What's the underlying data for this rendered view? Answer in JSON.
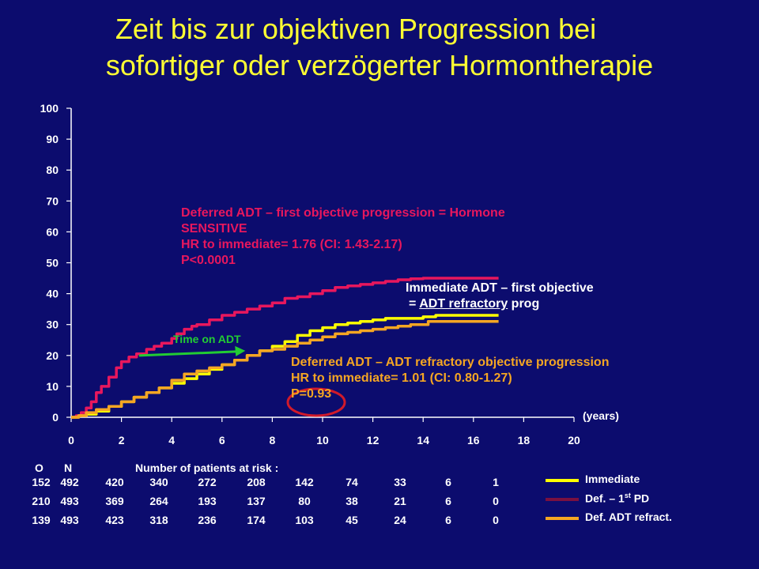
{
  "title": {
    "line1": "Zeit bis zur objektiven Progression bei",
    "line2": "sofortiger oder verzögerter Hormontherapie"
  },
  "chart_data": {
    "type": "line",
    "xlabel": "(years)",
    "ylabel": "",
    "xlim": [
      0,
      20
    ],
    "ylim": [
      0,
      100
    ],
    "x_ticks": [
      0,
      2,
      4,
      6,
      8,
      10,
      12,
      14,
      16,
      18,
      20
    ],
    "y_ticks": [
      0,
      10,
      20,
      30,
      40,
      50,
      60,
      70,
      80,
      90,
      100
    ],
    "grid": false,
    "series": [
      {
        "key": "def-first-pd",
        "color": "#e8175d",
        "x": [
          0,
          0.2,
          0.4,
          0.6,
          0.8,
          1.0,
          1.2,
          1.5,
          1.8,
          2.0,
          2.3,
          2.6,
          3.0,
          3.3,
          3.6,
          4.0,
          4.2,
          4.5,
          4.8,
          5.0,
          5.5,
          6.0,
          6.5,
          7.0,
          7.5,
          8.0,
          8.5,
          9.0,
          9.5,
          10.0,
          10.5,
          11.0,
          11.5,
          12.0,
          12.5,
          13.0,
          13.5,
          14.0,
          14.5,
          15.0,
          15.5,
          16.0,
          16.5,
          17.0
        ],
        "y": [
          0,
          0.5,
          1.5,
          3,
          5,
          8,
          10,
          13,
          16,
          18,
          19.5,
          20.5,
          22,
          23,
          24,
          25.5,
          27,
          28.5,
          29.5,
          30,
          31.5,
          33,
          34,
          35,
          36,
          37,
          38.5,
          39,
          40,
          41,
          42,
          42.5,
          43,
          43.5,
          44,
          44.5,
          44.8,
          45,
          45,
          45,
          45,
          45,
          45,
          45
        ]
      },
      {
        "key": "immediate",
        "color": "#ffff00",
        "x": [
          0,
          0.3,
          0.6,
          1.0,
          1.5,
          2.0,
          2.5,
          3.0,
          3.5,
          4.0,
          4.5,
          5.0,
          5.5,
          6.0,
          6.5,
          7.0,
          7.5,
          8.0,
          8.5,
          9.0,
          9.5,
          10.0,
          10.5,
          11.0,
          11.5,
          12.0,
          12.5,
          13.0,
          13.5,
          14.0,
          14.5,
          15.0,
          15.5,
          16.0,
          16.5,
          17.0
        ],
        "y": [
          0,
          0.5,
          1,
          2,
          3.5,
          5,
          6.5,
          8,
          9.5,
          11,
          12.5,
          14,
          15.5,
          17,
          18.5,
          20,
          21.5,
          23,
          24.5,
          26.5,
          28,
          29,
          30,
          30.5,
          31,
          31.5,
          32,
          32,
          32,
          32.5,
          33,
          33,
          33,
          33,
          33,
          33
        ]
      },
      {
        "key": "def-adt-refract",
        "color": "#f5a623",
        "x": [
          0,
          0.3,
          0.6,
          1.0,
          1.5,
          2.0,
          2.5,
          3.0,
          3.5,
          4.0,
          4.5,
          5.0,
          5.5,
          6.0,
          6.5,
          7.0,
          7.5,
          8.0,
          8.5,
          9.0,
          9.5,
          10.0,
          10.5,
          11.0,
          11.5,
          12.0,
          12.5,
          13.0,
          13.5,
          14.0,
          14.2,
          14.5,
          15.0,
          15.5,
          16.0,
          16.5,
          17.0
        ],
        "y": [
          0,
          0.5,
          1.5,
          2.5,
          3.5,
          5,
          6.5,
          8,
          9.5,
          12,
          14,
          15,
          16,
          17,
          18.5,
          20,
          21.5,
          22,
          23,
          24,
          25,
          26,
          27,
          27.5,
          28,
          28.5,
          29,
          29.5,
          30,
          30,
          31,
          31,
          31,
          31,
          31,
          31,
          31
        ]
      }
    ],
    "marker": {
      "x_start": 2.7,
      "x_end": 6.8,
      "y": 21,
      "color": "#22cc33"
    },
    "highlight_circle_color": "#d11a2a"
  },
  "annotations": {
    "sensitive": [
      "Deferred ADT – first objective progression = Hormone",
      "SENSITIVE",
      "HR to immediate= 1.76 (CI: 1.43-2.17)",
      "P<0.0001"
    ],
    "immediate": {
      "line1": "Immediate ADT – first objective",
      "line2_pre": "= ",
      "line2_u": "ADT refractory",
      "line2_post": " prog"
    },
    "refractory": [
      "Deferred ADT – ADT refractory objective progression",
      "HR to immediate= 1.01 (CI: 0.80-1.27)",
      "P=0.93"
    ],
    "time_on_adt": "Time on ADT"
  },
  "risk_table": {
    "col_o": "O",
    "col_n": "N",
    "header": "Number of patients at risk :",
    "rows": [
      {
        "o": "152",
        "n": "492",
        "values": [
          "420",
          "340",
          "272",
          "208",
          "142",
          "74",
          "33",
          "6",
          "1"
        ]
      },
      {
        "o": "210",
        "n": "493",
        "values": [
          "369",
          "264",
          "193",
          "137",
          "80",
          "38",
          "21",
          "6",
          "0"
        ]
      },
      {
        "o": "139",
        "n": "493",
        "values": [
          "423",
          "318",
          "236",
          "174",
          "103",
          "45",
          "24",
          "6",
          "0"
        ]
      }
    ]
  },
  "legend": [
    {
      "label": "Immediate",
      "color": "#ffff00"
    },
    {
      "label": "Def. – 1",
      "sup": "st",
      "label_post": " PD",
      "color": "#7a1040"
    },
    {
      "label": "Def. ADT refract.",
      "color": "#f5a623"
    }
  ]
}
